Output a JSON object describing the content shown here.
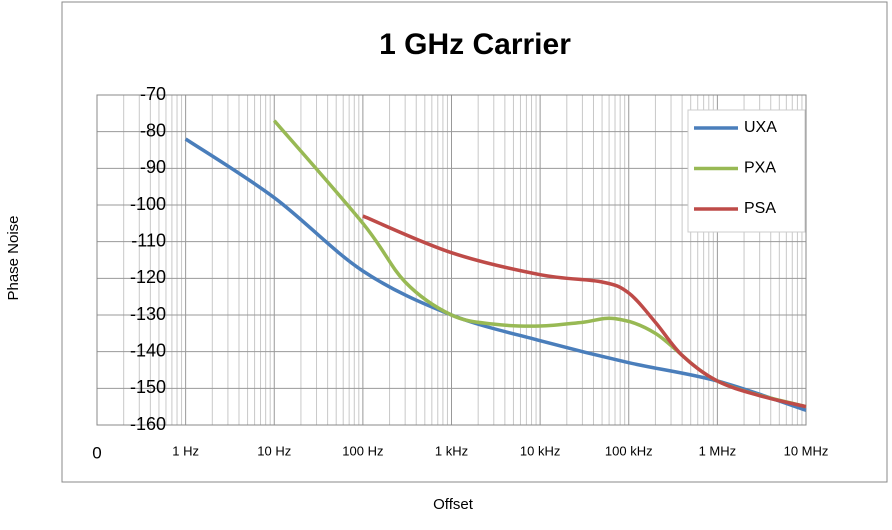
{
  "chart_data": {
    "type": "line",
    "title": "1 GHz Carrier",
    "x_label": "Offset",
    "y_label": "Phase Noise",
    "log_x": true,
    "grid": true,
    "legend": "upper right",
    "xlim": [
      0.1,
      10000000
    ],
    "xticks": [
      {
        "value": 0.1,
        "label": "0"
      },
      {
        "value": 1,
        "label": "1 Hz"
      },
      {
        "value": 10,
        "label": "10 Hz"
      },
      {
        "value": 100,
        "label": "100 Hz"
      },
      {
        "value": 1000,
        "label": "1 kHz"
      },
      {
        "value": 10000,
        "label": "10 kHz"
      },
      {
        "value": 100000,
        "label": "100 kHz"
      },
      {
        "value": 1000000,
        "label": "1 MHz"
      },
      {
        "value": 10000000,
        "label": "10 MHz"
      }
    ],
    "ylim": [
      -160,
      -70
    ],
    "yticks": [
      -70,
      -80,
      -90,
      -100,
      -110,
      -120,
      -130,
      -140,
      -150,
      -160
    ],
    "series": [
      {
        "name": "UXA",
        "color": "#4a7ebb",
        "x": [
          1,
          10,
          100,
          1000,
          10000,
          100000,
          1000000,
          10000000
        ],
        "values": [
          -82,
          -98,
          -118,
          -130,
          -137,
          -143,
          -148,
          -156
        ]
      },
      {
        "name": "PXA",
        "color": "#98b954",
        "x": [
          10,
          100,
          300,
          1000,
          3000,
          10000,
          30000,
          70000,
          200000,
          1000000,
          10000000
        ],
        "values": [
          -77,
          -105,
          -121,
          -130,
          -132.5,
          -133,
          -132,
          -131,
          -135,
          -148,
          -155
        ]
      },
      {
        "name": "PSA",
        "color": "#be4b48",
        "x": [
          100,
          1000,
          10000,
          50000,
          100000,
          200000,
          400000,
          1000000,
          3000000,
          10000000
        ],
        "values": [
          -103,
          -113,
          -119,
          -121,
          -124,
          -132,
          -141,
          -148,
          -152,
          -155
        ]
      }
    ]
  }
}
